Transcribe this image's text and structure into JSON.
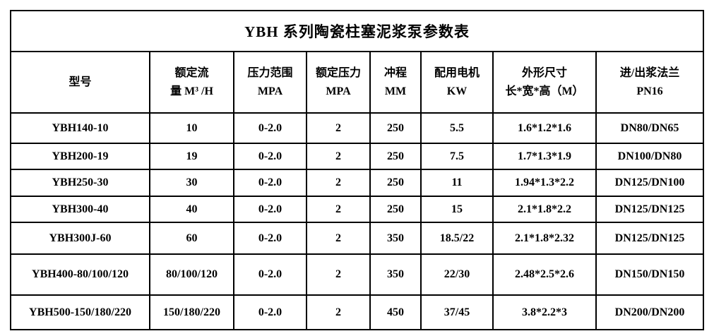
{
  "table": {
    "title": "YBH 系列陶瓷柱塞泥浆泵参数表",
    "columns": [
      {
        "line1": "型号",
        "line2": ""
      },
      {
        "line1": "额定流",
        "line2": "量 M³ /H"
      },
      {
        "line1": "压力范围",
        "line2": "MPA"
      },
      {
        "line1": "额定压力",
        "line2": "MPA"
      },
      {
        "line1": "冲程",
        "line2": "MM"
      },
      {
        "line1": "配用电机",
        "line2": "KW"
      },
      {
        "line1": "外形尺寸",
        "line2": "长*宽*高（M）"
      },
      {
        "line1": "进/出浆法兰",
        "line2": "PN16"
      }
    ],
    "rows": [
      [
        "YBH140-10",
        "10",
        "0-2.0",
        "2",
        "250",
        "5.5",
        "1.6*1.2*1.6",
        "DN80/DN65"
      ],
      [
        "YBH200-19",
        "19",
        "0-2.0",
        "2",
        "250",
        "7.5",
        "1.7*1.3*1.9",
        "DN100/DN80"
      ],
      [
        "YBH250-30",
        "30",
        "0-2.0",
        "2",
        "250",
        "11",
        "1.94*1.3*2.2",
        "DN125/DN100"
      ],
      [
        "YBH300-40",
        "40",
        "0-2.0",
        "2",
        "250",
        "15",
        "2.1*1.8*2.2",
        "DN125/DN125"
      ],
      [
        "YBH300J-60",
        "60",
        "0-2.0",
        "2",
        "350",
        "18.5/22",
        "2.1*1.8*2.32",
        "DN125/DN125"
      ],
      [
        "YBH400-80/100/120",
        "80/100/120",
        "0-2.0",
        "2",
        "350",
        "22/30",
        "2.48*2.5*2.6",
        "DN150/DN150"
      ],
      [
        "YBH500-150/180/220",
        "150/180/220",
        "0-2.0",
        "2",
        "450",
        "37/45",
        "3.8*2.2*3",
        "DN200/DN200"
      ]
    ],
    "colors": {
      "border": "#000000",
      "text": "#000000",
      "background": "#ffffff"
    }
  }
}
